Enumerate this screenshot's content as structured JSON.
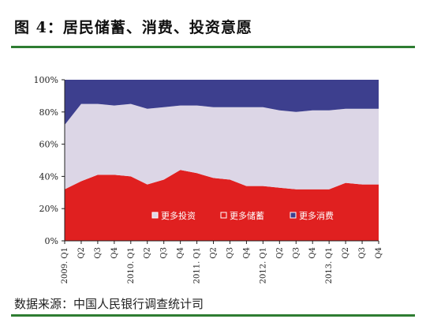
{
  "title": "图 4：居民储蓄、消费、投资意愿",
  "source": {
    "label": "数据来源：",
    "text": "中国人民银行调查统计司"
  },
  "colors": {
    "savings": "#e02020",
    "investment": "#dcd6e6",
    "consumption": "#3d3f8e",
    "rule": "#2e7d32"
  },
  "chart_data": {
    "type": "area",
    "stacked": true,
    "x": [
      "2009. Q1",
      "Q2",
      "Q3",
      "Q4",
      "2010. Q1",
      "Q2",
      "Q3",
      "Q4",
      "2011. Q1",
      "Q2",
      "Q3",
      "Q4",
      "2012. Q1",
      "Q2",
      "Q3",
      "Q4",
      "2013. Q1",
      "Q2",
      "Q3",
      "Q4"
    ],
    "yticks": [
      "0%",
      "20%",
      "40%",
      "60%",
      "80%",
      "100%"
    ],
    "ylim": [
      0,
      100
    ],
    "series": [
      {
        "name": "更多储蓄",
        "color": "#e02020",
        "values": [
          32,
          37,
          41,
          41,
          40,
          35,
          38,
          44,
          42,
          39,
          38,
          34,
          34,
          33,
          32,
          32,
          32,
          36,
          35,
          35
        ]
      },
      {
        "name": "更多投资",
        "color": "#dcd6e6",
        "values": [
          40,
          48,
          44,
          43,
          45,
          47,
          45,
          40,
          42,
          44,
          45,
          49,
          49,
          48,
          48,
          49,
          49,
          46,
          47,
          47
        ]
      },
      {
        "name": "更多消费",
        "color": "#3d3f8e",
        "values": [
          28,
          15,
          15,
          16,
          15,
          18,
          17,
          16,
          16,
          17,
          17,
          17,
          17,
          19,
          20,
          19,
          19,
          18,
          18,
          18
        ]
      }
    ],
    "legend": [
      {
        "name": "更多投资",
        "color": "#dcd6e6"
      },
      {
        "name": "更多储蓄",
        "color": "#e02020"
      },
      {
        "name": "更多消费",
        "color": "#3d3f8e"
      }
    ],
    "legend_position": "bottom-inside"
  }
}
